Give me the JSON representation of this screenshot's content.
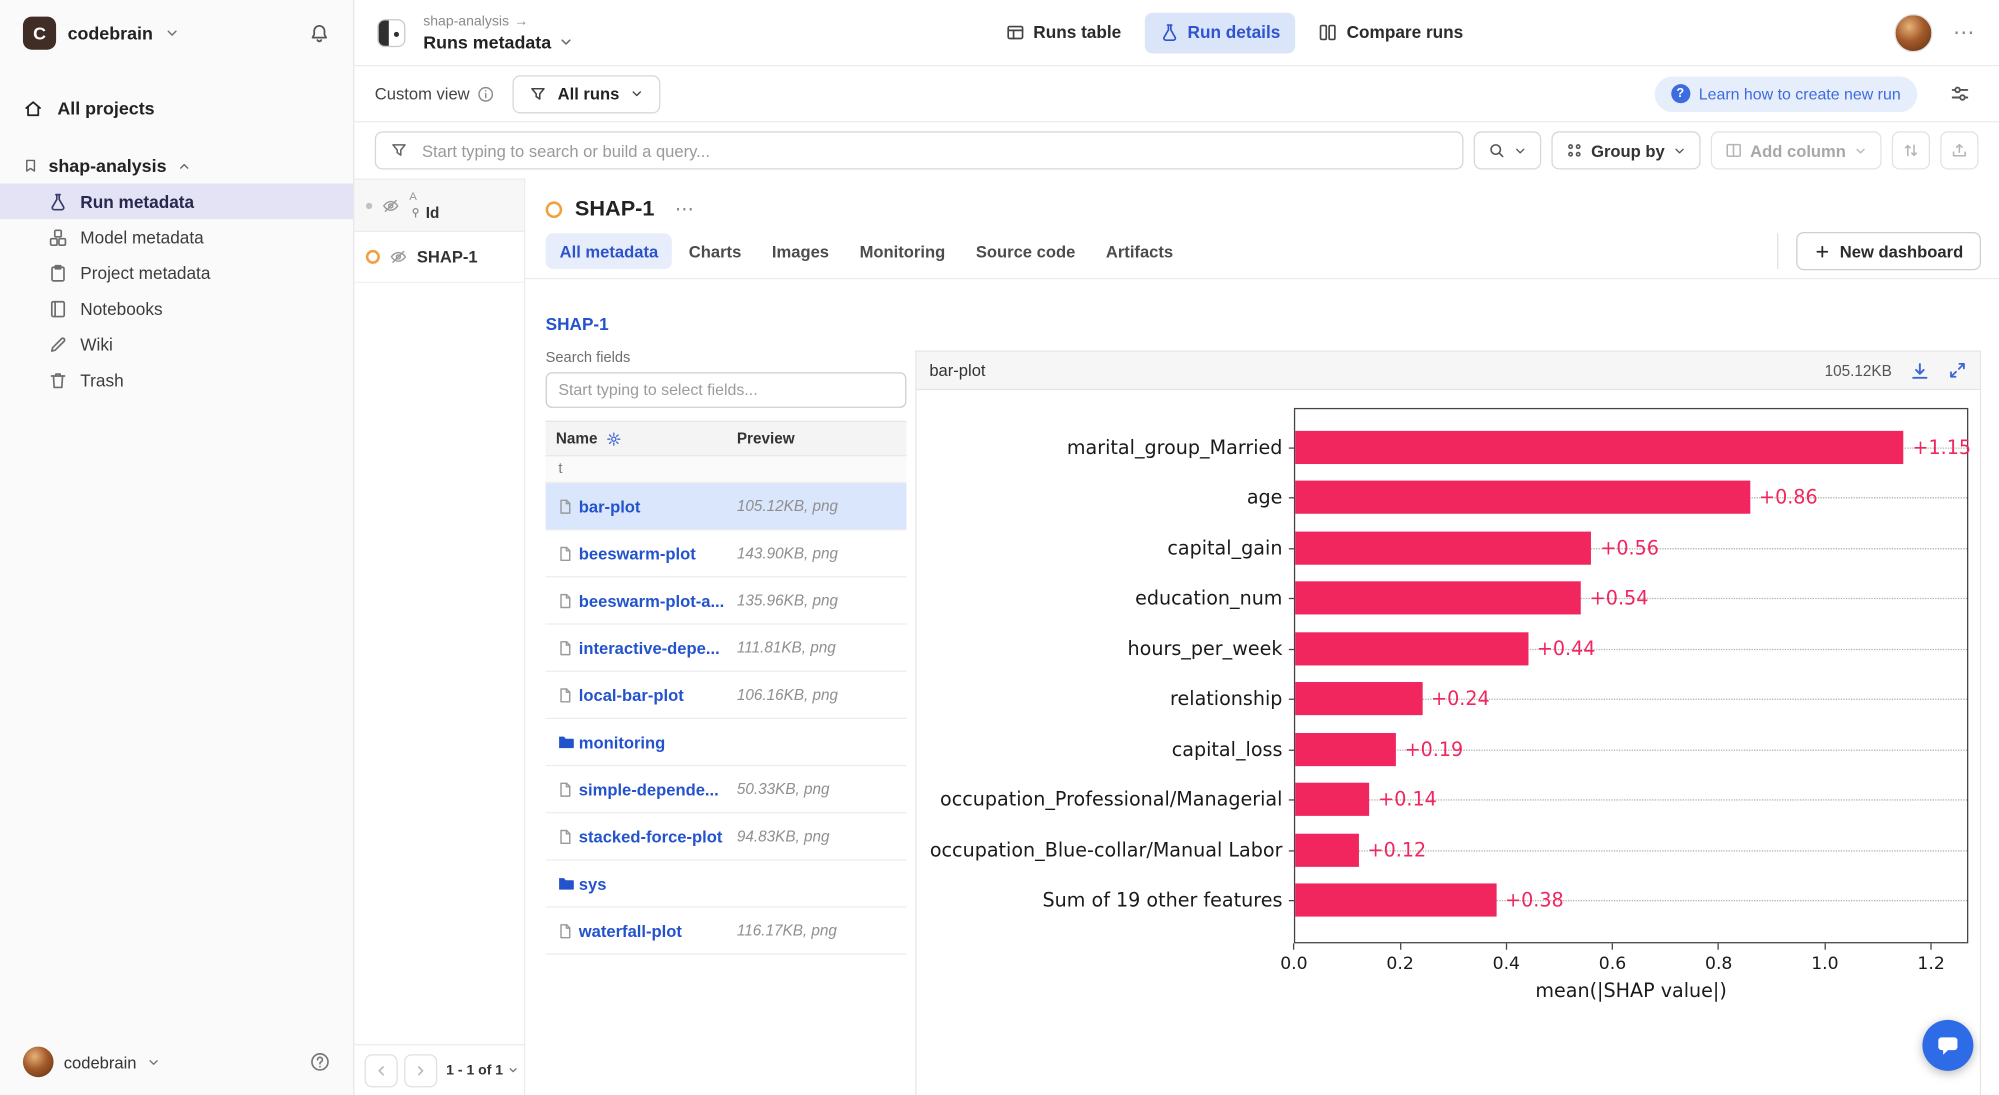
{
  "icons": {
    "breadcrumb_arrow": "→",
    "more_menu": "⋯",
    "field_type_text": "t",
    "question_mark": "?"
  },
  "sidebar": {
    "logo_letter": "C",
    "workspace": "codebrain",
    "all_projects_label": "All projects",
    "project_name": "shap-analysis",
    "items": [
      {
        "label": "Run metadata",
        "icon": "flask-icon",
        "active": true
      },
      {
        "label": "Model metadata",
        "icon": "model-icon",
        "active": false
      },
      {
        "label": "Project metadata",
        "icon": "clipboard-icon",
        "active": false
      },
      {
        "label": "Notebooks",
        "icon": "notebook-icon",
        "active": false
      },
      {
        "label": "Wiki",
        "icon": "pencil-icon",
        "active": false
      },
      {
        "label": "Trash",
        "icon": "trash-icon",
        "active": false
      }
    ],
    "footer_user": "codebrain"
  },
  "header": {
    "breadcrumb_project": "shap-analysis",
    "view_title": "Runs metadata",
    "nav": [
      {
        "label": "Runs table",
        "icon": "table-icon",
        "active": false
      },
      {
        "label": "Run details",
        "icon": "flask-icon",
        "active": true
      },
      {
        "label": "Compare runs",
        "icon": "compare-icon",
        "active": false
      }
    ]
  },
  "viewbar": {
    "custom_view_label": "Custom view",
    "runs_filter_label": "All runs",
    "learn_link_label": "Learn how to create new run"
  },
  "querybar": {
    "search_placeholder": "Start typing to search or build a query...",
    "group_by_label": "Group by",
    "add_column_label": "Add column"
  },
  "runs_list": {
    "sort_tag": "A",
    "id_header": "Id",
    "rows": [
      {
        "name": "SHAP-1"
      }
    ],
    "pagination_label": "1 - 1 of 1"
  },
  "run_details": {
    "title": "SHAP-1",
    "tabs": [
      {
        "label": "All metadata",
        "active": true
      },
      {
        "label": "Charts",
        "active": false
      },
      {
        "label": "Images",
        "active": false
      },
      {
        "label": "Monitoring",
        "active": false
      },
      {
        "label": "Source code",
        "active": false
      },
      {
        "label": "Artifacts",
        "active": false
      }
    ],
    "new_dashboard_label": "New dashboard",
    "fields": {
      "section_link": "SHAP-1",
      "search_label": "Search fields",
      "search_placeholder": "Start typing to select fields...",
      "name_header": "Name",
      "preview_header": "Preview",
      "rows": [
        {
          "name": "bar-plot",
          "preview": "105.12KB, png",
          "type": "file",
          "selected": true
        },
        {
          "name": "beeswarm-plot",
          "preview": "143.90KB, png",
          "type": "file",
          "selected": false
        },
        {
          "name": "beeswarm-plot-a...",
          "preview": "135.96KB, png",
          "type": "file",
          "selected": false
        },
        {
          "name": "interactive-depe...",
          "preview": "111.81KB, png",
          "type": "file",
          "selected": false
        },
        {
          "name": "local-bar-plot",
          "preview": "106.16KB, png",
          "type": "file",
          "selected": false
        },
        {
          "name": "monitoring",
          "preview": "",
          "type": "folder",
          "selected": false
        },
        {
          "name": "simple-depende...",
          "preview": "50.33KB, png",
          "type": "file",
          "selected": false
        },
        {
          "name": "stacked-force-plot",
          "preview": "94.83KB, png",
          "type": "file",
          "selected": false
        },
        {
          "name": "sys",
          "preview": "",
          "type": "folder",
          "selected": false
        },
        {
          "name": "waterfall-plot",
          "preview": "116.17KB, png",
          "type": "file",
          "selected": false
        }
      ]
    }
  },
  "preview": {
    "title": "bar-plot",
    "size": "105.12KB"
  },
  "chart_data": {
    "type": "bar",
    "orientation": "horizontal",
    "categories": [
      "marital_group_Married",
      "age",
      "capital_gain",
      "education_num",
      "hours_per_week",
      "relationship",
      "capital_loss",
      "occupation_Professional/Managerial",
      "occupation_Blue-collar/Manual Labor",
      "Sum of 19 other features"
    ],
    "values": [
      1.15,
      0.86,
      0.56,
      0.54,
      0.44,
      0.24,
      0.19,
      0.14,
      0.12,
      0.38
    ],
    "value_labels": [
      "+1.15",
      "+0.86",
      "+0.56",
      "+0.54",
      "+0.44",
      "+0.24",
      "+0.19",
      "+0.14",
      "+0.12",
      "+0.38"
    ],
    "xlabel": "mean(|SHAP value|)",
    "xticks": [
      0,
      0.2,
      0.4,
      0.6,
      0.8,
      1,
      1.2
    ],
    "xlim": [
      0,
      1.27
    ],
    "bar_color": "#f1265f",
    "grid": "dotted-row-lines",
    "legend": "none"
  }
}
